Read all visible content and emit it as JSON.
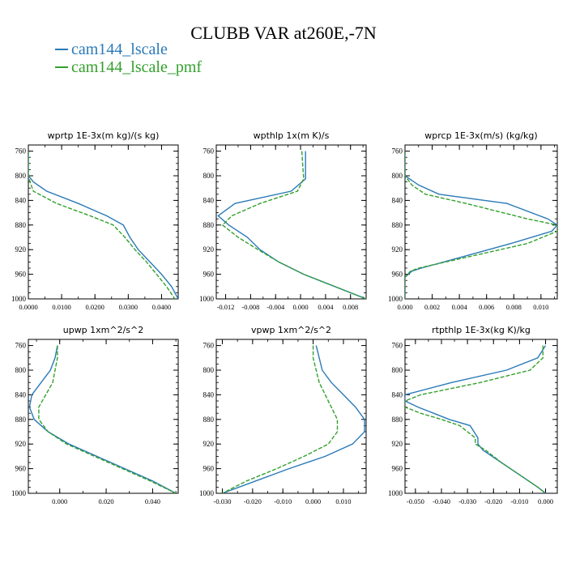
{
  "title": "CLUBB VAR at260E,-7N",
  "colors": {
    "series1": "#2a7ab8",
    "series2": "#33a02c"
  },
  "legend": [
    "cam144_lscale",
    "cam144_lscale_pmf"
  ],
  "chart_data": [
    {
      "type": "line",
      "title": "wprtp 1E-3x(m kg)/(s kg)",
      "xlim": [
        0,
        0.045
      ],
      "xticks": [
        0,
        0.01,
        0.02,
        0.03,
        0.04
      ],
      "xtick_labels": [
        "0.0000",
        "0.0100",
        "0.0200",
        "0.0300",
        "0.0400"
      ],
      "ylim": [
        1000,
        750
      ],
      "yticks": [
        760,
        800,
        840,
        880,
        920,
        960,
        1000
      ],
      "y": [
        760,
        800,
        810,
        825,
        845,
        865,
        880,
        900,
        920,
        940,
        960,
        980,
        1000
      ],
      "series": [
        {
          "name": "cam144_lscale",
          "values": [
            0.0,
            0.0,
            0.0015,
            0.0055,
            0.015,
            0.0235,
            0.0285,
            0.0305,
            0.033,
            0.0365,
            0.04,
            0.043,
            0.045
          ]
        },
        {
          "name": "cam144_lscale_pmf",
          "values": [
            0.0,
            0.0,
            0.0005,
            0.0015,
            0.0085,
            0.0185,
            0.0255,
            0.029,
            0.032,
            0.0355,
            0.0385,
            0.0415,
            0.044
          ]
        }
      ]
    },
    {
      "type": "line",
      "title": "wpthlp 1x(m K)/s",
      "xlim": [
        -0.0135,
        0.0105
      ],
      "xticks": [
        -0.012,
        -0.008,
        -0.004,
        0,
        0.004,
        0.008
      ],
      "xtick_labels": [
        "-0.012",
        "-0.008",
        "-0.004",
        "0.000",
        "0.004",
        "0.008"
      ],
      "ylim": [
        1000,
        750
      ],
      "yticks": [
        760,
        800,
        840,
        880,
        920,
        960,
        1000
      ],
      "y": [
        760,
        805,
        825,
        845,
        865,
        880,
        900,
        920,
        940,
        960,
        980,
        1000
      ],
      "series": [
        {
          "name": "cam144_lscale",
          "values": [
            0.0008,
            0.0008,
            -0.0015,
            -0.0105,
            -0.0132,
            -0.0115,
            -0.0085,
            -0.0065,
            -0.0035,
            0.0005,
            0.0055,
            0.0105
          ]
        },
        {
          "name": "cam144_lscale_pmf",
          "values": [
            0.0002,
            0.0005,
            -0.0005,
            -0.0065,
            -0.011,
            -0.0125,
            -0.01,
            -0.0068,
            -0.0035,
            0.0005,
            0.0055,
            0.0105
          ]
        }
      ]
    },
    {
      "type": "line",
      "title": "wprcp 1E-3x(m/s) (kg/kg)",
      "xlim": [
        0,
        0.0112
      ],
      "xticks": [
        0,
        0.002,
        0.004,
        0.006,
        0.008,
        0.01
      ],
      "xtick_labels": [
        "0.000",
        "0.002",
        "0.004",
        "0.006",
        "0.008",
        "0.010"
      ],
      "ylim": [
        1000,
        750
      ],
      "yticks": [
        760,
        800,
        840,
        880,
        920,
        960,
        1000
      ],
      "y": [
        760,
        800,
        815,
        830,
        845,
        870,
        880,
        890,
        910,
        930,
        950,
        955,
        965,
        1000
      ],
      "series": [
        {
          "name": "cam144_lscale",
          "values": [
            0.0,
            0.0,
            0.001,
            0.0025,
            0.0075,
            0.0105,
            0.0112,
            0.0108,
            0.0078,
            0.0045,
            0.0012,
            0.0005,
            0.0,
            0.0
          ]
        },
        {
          "name": "cam144_lscale_pmf",
          "values": [
            0.0,
            0.0,
            0.0005,
            0.0015,
            0.0045,
            0.009,
            0.0112,
            0.0112,
            0.009,
            0.005,
            0.001,
            0.0004,
            0.0,
            0.0
          ]
        }
      ]
    },
    {
      "type": "line",
      "title": "upwp 1xm^2/s^2",
      "xlim": [
        -0.0135,
        0.051
      ],
      "xticks": [
        0,
        0.02,
        0.04
      ],
      "xtick_labels": [
        "0.000",
        "0.020",
        "0.040"
      ],
      "ylim": [
        1000,
        750
      ],
      "yticks": [
        760,
        800,
        840,
        880,
        920,
        960,
        1000
      ],
      "y": [
        760,
        780,
        800,
        820,
        840,
        860,
        880,
        900,
        920,
        940,
        960,
        980,
        1000
      ],
      "series": [
        {
          "name": "cam144_lscale",
          "values": [
            -0.001,
            -0.002,
            -0.004,
            -0.008,
            -0.012,
            -0.013,
            -0.011,
            -0.005,
            0.004,
            0.016,
            0.028,
            0.04,
            0.05
          ]
        },
        {
          "name": "cam144_lscale_pmf",
          "values": [
            -0.001,
            -0.001,
            -0.002,
            -0.003,
            -0.006,
            -0.009,
            -0.009,
            -0.005,
            0.003,
            0.015,
            0.027,
            0.039,
            0.05
          ]
        }
      ]
    },
    {
      "type": "line",
      "title": "vpwp 1xm^2/s^2",
      "xlim": [
        -0.032,
        0.0175
      ],
      "xticks": [
        -0.03,
        -0.02,
        -0.01,
        0,
        0.01
      ],
      "xtick_labels": [
        "-0.030",
        "-0.020",
        "-0.010",
        "0.000",
        "0.010"
      ],
      "ylim": [
        1000,
        750
      ],
      "yticks": [
        760,
        800,
        840,
        880,
        920,
        960,
        1000
      ],
      "y": [
        760,
        780,
        800,
        820,
        840,
        860,
        880,
        900,
        920,
        940,
        960,
        980,
        1000
      ],
      "series": [
        {
          "name": "cam144_lscale",
          "values": [
            0.001,
            0.002,
            0.003,
            0.006,
            0.01,
            0.014,
            0.017,
            0.017,
            0.013,
            0.004,
            -0.008,
            -0.019,
            -0.03
          ]
        },
        {
          "name": "cam144_lscale_pmf",
          "values": [
            0.0,
            0.0,
            0.001,
            0.002,
            0.004,
            0.006,
            0.008,
            0.008,
            0.005,
            -0.003,
            -0.012,
            -0.022,
            -0.03
          ]
        }
      ]
    },
    {
      "type": "line",
      "title": "rtpthlp 1E-3x(kg K)/kg",
      "xlim": [
        -0.054,
        0.0045
      ],
      "xticks": [
        -0.05,
        -0.04,
        -0.03,
        -0.02,
        -0.01,
        0
      ],
      "xtick_labels": [
        "-0.050",
        "-0.040",
        "-0.030",
        "-0.020",
        "-0.010",
        "0.000"
      ],
      "ylim": [
        1000,
        750
      ],
      "yticks": [
        760,
        800,
        840,
        880,
        920,
        960,
        1000
      ],
      "y": [
        760,
        780,
        800,
        820,
        840,
        850,
        860,
        870,
        880,
        890,
        910,
        920,
        930,
        950,
        970,
        990,
        1000
      ],
      "series": [
        {
          "name": "cam144_lscale",
          "values": [
            0.0,
            -0.003,
            -0.015,
            -0.036,
            -0.054,
            -0.054,
            -0.049,
            -0.043,
            -0.037,
            -0.029,
            -0.026,
            -0.026,
            -0.024,
            -0.017,
            -0.01,
            -0.003,
            0.0
          ]
        },
        {
          "name": "cam144_lscale_pmf",
          "values": [
            -0.001,
            -0.001,
            -0.006,
            -0.025,
            -0.048,
            -0.054,
            -0.054,
            -0.048,
            -0.04,
            -0.033,
            -0.027,
            -0.027,
            -0.023,
            -0.017,
            -0.01,
            -0.003,
            0.0
          ]
        }
      ]
    }
  ]
}
